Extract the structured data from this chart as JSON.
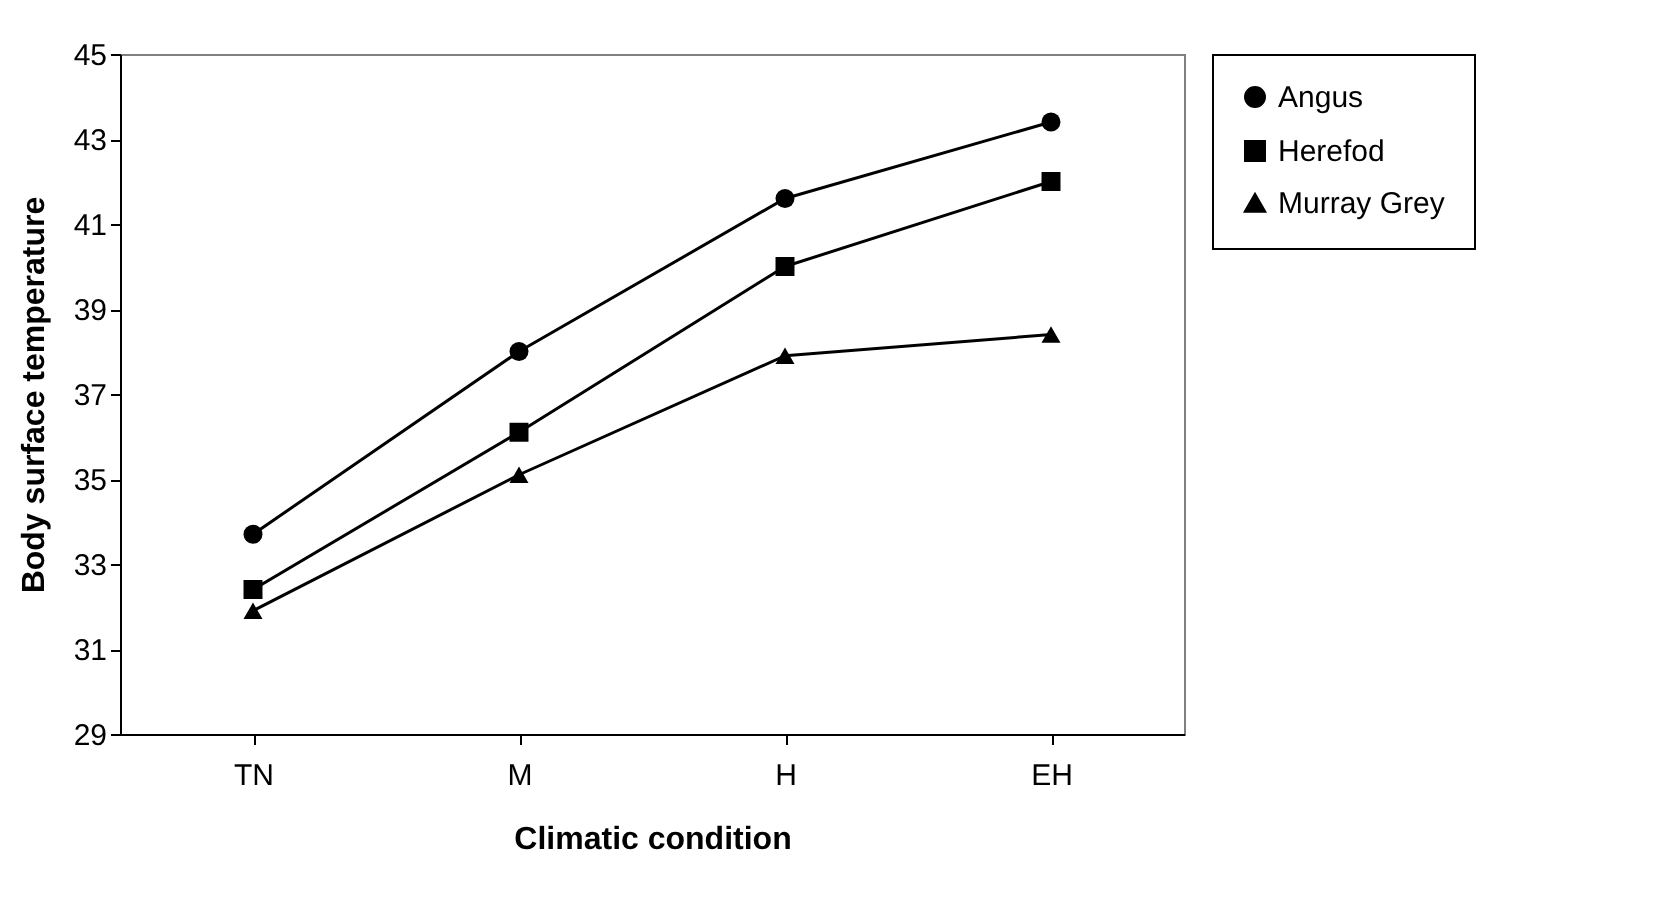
{
  "chart_data": {
    "type": "line",
    "xlabel": "Climatic condition",
    "ylabel": "Body surface temperature",
    "categories": [
      "TN",
      "M",
      "H",
      "EH"
    ],
    "series": [
      {
        "name": "Angus",
        "color": "#000000",
        "marker": "circle",
        "values": [
          33.7,
          38.0,
          41.6,
          43.4
        ]
      },
      {
        "name": "Herefod",
        "color": "#000000",
        "marker": "square",
        "values": [
          32.4,
          36.1,
          40.0,
          42.0
        ]
      },
      {
        "name": "Murray Grey",
        "color": "#000000",
        "marker": "triangle",
        "values": [
          31.9,
          35.1,
          37.9,
          38.4
        ]
      }
    ],
    "ylim": [
      29,
      45
    ],
    "yticks": [
      29,
      31,
      33,
      35,
      37,
      39,
      41,
      43,
      45
    ],
    "grid": false,
    "legend": "right",
    "line_style": "solid"
  }
}
